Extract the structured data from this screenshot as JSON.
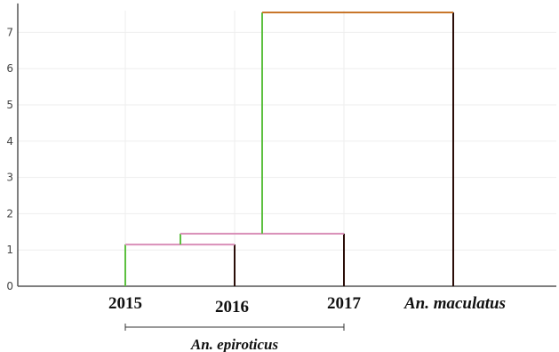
{
  "chart_data": {
    "type": "dendrogram",
    "y_ticks": [
      0,
      1,
      2,
      3,
      4,
      5,
      6,
      7
    ],
    "ylim": [
      0,
      7.6
    ],
    "grid": true,
    "leaves": [
      {
        "label": "2015",
        "italic": false
      },
      {
        "label": "2016",
        "italic": false
      },
      {
        "label": "2017",
        "italic": false
      },
      {
        "label": "An. maculatus",
        "italic": true
      }
    ],
    "merges": [
      {
        "left": "2015",
        "right": "2016",
        "height": 1.15
      },
      {
        "left": "2015+2016",
        "right": "2017",
        "height": 1.45
      },
      {
        "left": "2015+2016+2017",
        "right": "An. maculatus",
        "height": 7.55
      }
    ],
    "group_bracket": {
      "label": "An. epiroticus",
      "from": "2015",
      "to": "2017"
    }
  },
  "colors": {
    "green": "#5dc040",
    "pink": "#d98fb8",
    "orange": "#c8762a",
    "dark": "#2a0d08",
    "axis": "#555555",
    "grid": "#eeeeee"
  }
}
